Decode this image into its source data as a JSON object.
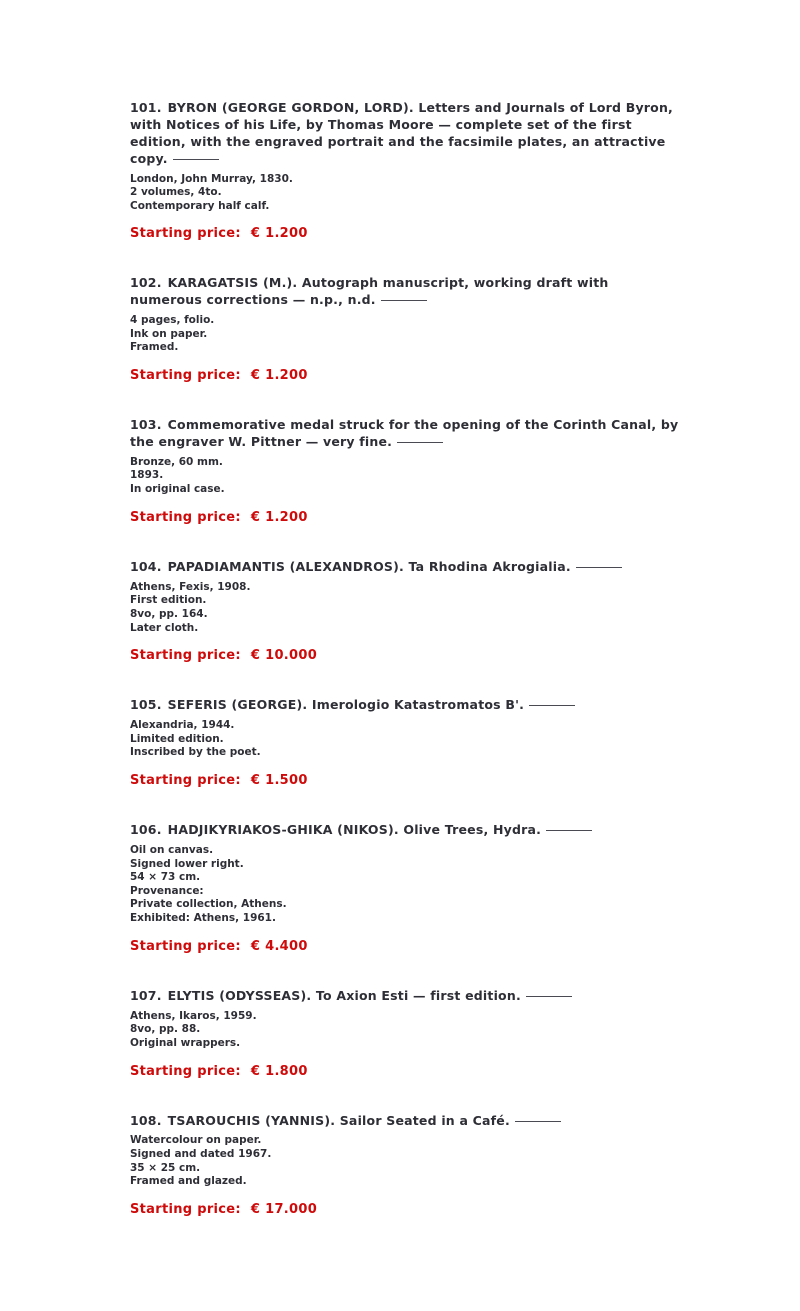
{
  "page": {
    "background": "#ffffff",
    "text_color": "#2e2e36",
    "accent_red": "#cf0a0a"
  },
  "lots": [
    {
      "number": "101.",
      "title": "BYRON (GEORGE GORDON, LORD). Letters and Journals of Lord Byron, with Notices of his Life, by Thomas Moore — complete set of the first edition, with the engraved portrait and the facsimile plates, an attractive copy.",
      "details": [
        "London, John Murray, 1830.",
        "2 volumes, 4to.",
        "Contemporary half calf."
      ],
      "price_label": "Starting price:",
      "price_value": "€ 1.200"
    },
    {
      "number": "102.",
      "title": "KARAGATSIS (M.). Autograph manuscript, working draft with numerous corrections — n.p., n.d.",
      "details": [
        "4 pages, folio.",
        "Ink on paper.",
        "Framed."
      ],
      "price_label": "Starting price:",
      "price_value": "€ 1.200"
    },
    {
      "number": "103.",
      "title": "Commemorative medal struck for the opening of the Corinth Canal, by the engraver W. Pittner — very fine.",
      "details": [
        "Bronze, 60 mm.",
        "1893.",
        "In original case."
      ],
      "price_label": "Starting price:",
      "price_value": "€ 1.200"
    },
    {
      "number": "104.",
      "title": "PAPADIAMANTIS (ALEXANDROS). Ta Rhodina Akrogialia.",
      "details": [
        "Athens, Fexis, 1908.",
        "First edition.",
        "8vo, pp. 164.",
        "Later cloth."
      ],
      "price_label": "Starting price:",
      "price_value": "€ 10.000"
    },
    {
      "number": "105.",
      "title": "SEFERIS (GEORGE). Imerologio Katastromatos B'.",
      "details": [
        "Alexandria, 1944.",
        "Limited edition.",
        "Inscribed by the poet."
      ],
      "price_label": "Starting price:",
      "price_value": "€ 1.500"
    },
    {
      "number": "106.",
      "title": "HADJIKYRIAKOS-GHIKA (NIKOS). Olive Trees, Hydra.",
      "details": [
        "Oil on canvas.",
        "Signed lower right.",
        "54 × 73 cm.",
        "Provenance:",
        "Private collection, Athens.",
        "Exhibited: Athens, 1961."
      ],
      "price_label": "Starting price:",
      "price_value": "€ 4.400"
    },
    {
      "number": "107.",
      "title": "ELYTIS (ODYSSEAS). To Axion Esti — first edition.",
      "details": [
        "Athens, Ikaros, 1959.",
        "8vo, pp. 88.",
        "Original wrappers."
      ],
      "price_label": "Starting price:",
      "price_value": "€ 1.800"
    },
    {
      "number": "108.",
      "title": "TSAROUCHIS (YANNIS). Sailor Seated in a Café.",
      "details": [
        "Watercolour on paper.",
        "Signed and dated 1967.",
        "35 × 25 cm.",
        "Framed and glazed."
      ],
      "price_label": "Starting price:",
      "price_value": "€ 17.000"
    }
  ]
}
